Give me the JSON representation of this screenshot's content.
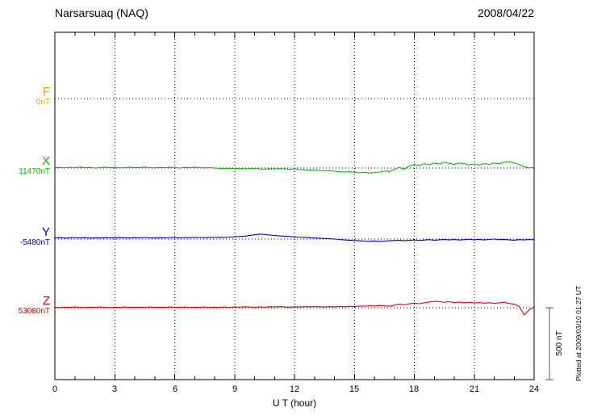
{
  "header": {
    "title": "Narsarsuaq (NAQ)",
    "date": "2008/04/22"
  },
  "axis": {
    "xlabel": "U T (hour)",
    "ticks": [
      "0",
      "3",
      "6",
      "9",
      "12",
      "15",
      "18",
      "21",
      "24"
    ]
  },
  "components": [
    {
      "key": "F",
      "label": "F",
      "baseline_label": "0nT",
      "color": "#f0a500"
    },
    {
      "key": "X",
      "label": "X",
      "baseline_label": "11470nT",
      "color": "#00c000"
    },
    {
      "key": "Y",
      "label": "Y",
      "baseline_label": "-5480nT",
      "color": "#0000e0"
    },
    {
      "key": "Z",
      "label": "Z",
      "baseline_label": "53080nT",
      "color": "#e80000"
    }
  ],
  "scale_bar": {
    "label": "500 nT",
    "nT": 500
  },
  "footer": {
    "note": "Plotted at 2009/03/10 01:27 UT"
  },
  "chart_data": {
    "type": "line",
    "title": "Narsarsuaq (NAQ) magnetogram 2008/04/22",
    "xlabel": "U T (hour)",
    "x_range": [
      0,
      24
    ],
    "x_tick_step": 3,
    "grid": "dotted",
    "scale_bar_nT": 500,
    "series": [
      {
        "name": "F",
        "color": "#f0a500",
        "baseline_nT": 0,
        "offsets_nT": []
      },
      {
        "name": "X",
        "color": "#00c000",
        "baseline_nT": 11470,
        "offsets_nT": [
          2,
          4,
          1,
          5,
          3,
          6,
          2,
          4,
          0,
          3,
          5,
          2,
          4,
          1,
          3,
          5,
          2,
          4,
          6,
          3,
          1,
          4,
          2,
          5,
          3,
          0,
          4,
          2,
          5,
          3,
          1,
          3,
          0,
          -2,
          -4,
          -3,
          -5,
          -2,
          -6,
          -4,
          -3,
          -6,
          -8,
          -5,
          -7,
          -4,
          -6,
          -9,
          -7,
          -10,
          -12,
          -15,
          -13,
          -17,
          -20,
          -18,
          -22,
          -25,
          -28,
          -26,
          -30,
          -33,
          -30,
          -35,
          -32,
          -28,
          -20,
          -25,
          -10,
          5,
          -8,
          15,
          25,
          18,
          30,
          22,
          35,
          28,
          40,
          32,
          25,
          35,
          30,
          22,
          28,
          20,
          30,
          25,
          35,
          30,
          40,
          45,
          35,
          25,
          10,
          0,
          5
        ]
      },
      {
        "name": "Y",
        "color": "#0000e0",
        "baseline_nT": -5480,
        "offsets_nT": [
          8,
          10,
          7,
          9,
          11,
          8,
          10,
          7,
          9,
          8,
          10,
          9,
          8,
          10,
          9,
          8,
          10,
          9,
          11,
          9,
          8,
          10,
          9,
          11,
          10,
          9,
          11,
          10,
          12,
          11,
          10,
          12,
          11,
          13,
          12,
          14,
          16,
          18,
          20,
          25,
          30,
          35,
          32,
          28,
          25,
          22,
          20,
          18,
          15,
          14,
          12,
          10,
          8,
          6,
          4,
          2,
          0,
          -3,
          -6,
          -8,
          -10,
          -12,
          -14,
          -15,
          -13,
          -16,
          -14,
          -12,
          -10,
          -8,
          -12,
          -9,
          -6,
          -10,
          -7,
          -4,
          -8,
          -5,
          -2,
          -6,
          -3,
          -7,
          -4,
          -1,
          -5,
          -2,
          -6,
          -3,
          0,
          -4,
          -2,
          -5,
          -8,
          -4,
          -6,
          -3,
          -5
        ]
      },
      {
        "name": "Z",
        "color": "#e80000",
        "baseline_nT": 53080,
        "offsets_nT": [
          3,
          1,
          4,
          2,
          5,
          3,
          1,
          4,
          2,
          5,
          3,
          1,
          4,
          2,
          5,
          3,
          2,
          4,
          3,
          5,
          2,
          4,
          3,
          5,
          4,
          2,
          5,
          3,
          4,
          2,
          5,
          3,
          4,
          2,
          5,
          3,
          6,
          4,
          7,
          5,
          3,
          6,
          4,
          7,
          5,
          8,
          6,
          4,
          7,
          5,
          8,
          6,
          9,
          7,
          5,
          8,
          6,
          9,
          7,
          10,
          8,
          12,
          10,
          14,
          12,
          16,
          14,
          10,
          18,
          25,
          20,
          28,
          32,
          28,
          35,
          40,
          45,
          42,
          38,
          42,
          36,
          40,
          35,
          38,
          33,
          36,
          32,
          35,
          30,
          34,
          38,
          30,
          25,
          10,
          -50,
          -15,
          5
        ]
      }
    ]
  }
}
